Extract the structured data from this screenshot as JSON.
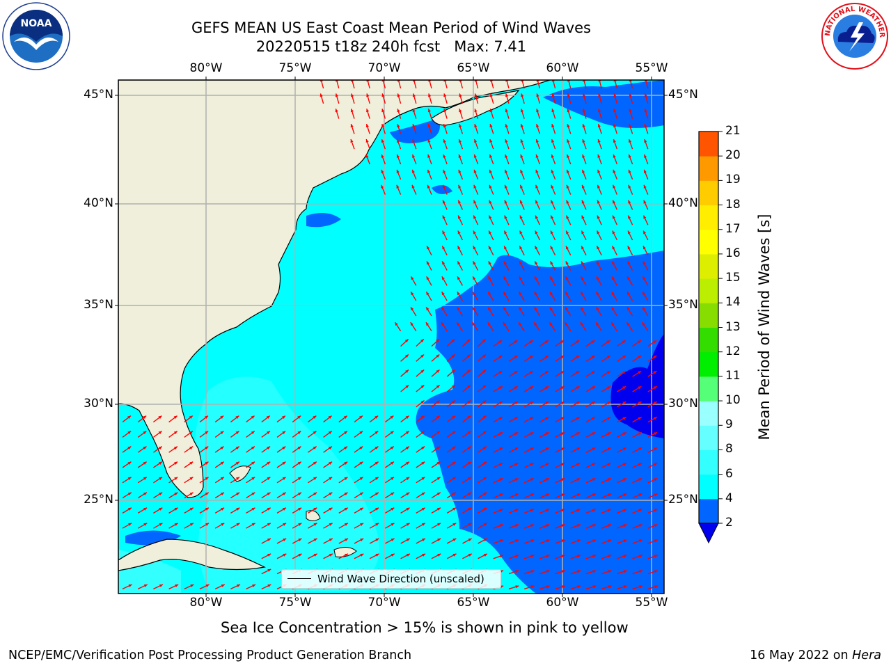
{
  "title": {
    "line1": "GEFS MEAN US East Coast Mean Period of Wind Waves",
    "line2": "20220515 t18z 240h fcst   Max: 7.41"
  },
  "logos": {
    "left": {
      "icon": "noaa-logo-icon",
      "text": "NOAA"
    },
    "right": {
      "icon": "nws-logo-icon",
      "text": "NATIONAL WEATHER SERVICE"
    }
  },
  "map": {
    "lon_ticks": [
      "80°W",
      "75°W",
      "70°W",
      "65°W",
      "60°W",
      "55°W"
    ],
    "lat_ticks": [
      "45°N",
      "40°N",
      "35°N",
      "30°N",
      "25°N"
    ],
    "land_color": "#efefdb",
    "grid_color": "#b0b0b0",
    "arrow_color": "#ff0000"
  },
  "legend": {
    "label": "Wind Wave Direction (unscaled)"
  },
  "colorbar": {
    "label": "Mean Period of Wind Waves [s]",
    "ticks": [
      "2",
      "4",
      "6",
      "8",
      "9",
      "10",
      "11",
      "12",
      "13",
      "14",
      "15",
      "16",
      "17",
      "18",
      "19",
      "20",
      "21"
    ],
    "colors": [
      "#0066ff",
      "#00ffff",
      "#33ffff",
      "#66ffff",
      "#99ffff",
      "#55ff77",
      "#00ee00",
      "#33dd00",
      "#88dd00",
      "#bbee00",
      "#ddee00",
      "#ffff00",
      "#ffee00",
      "#ffcc00",
      "#ff9900",
      "#ff5500",
      "#ff2200",
      "#ff0000"
    ],
    "under_color": "#0000ee"
  },
  "footer": {
    "note": "Sea Ice Concentration > 15% is shown in pink to yellow",
    "org": "NCEP/EMC/Verification Post Processing Product Generation Branch",
    "date": "16 May 2022 on ",
    "host": "Hera"
  }
}
